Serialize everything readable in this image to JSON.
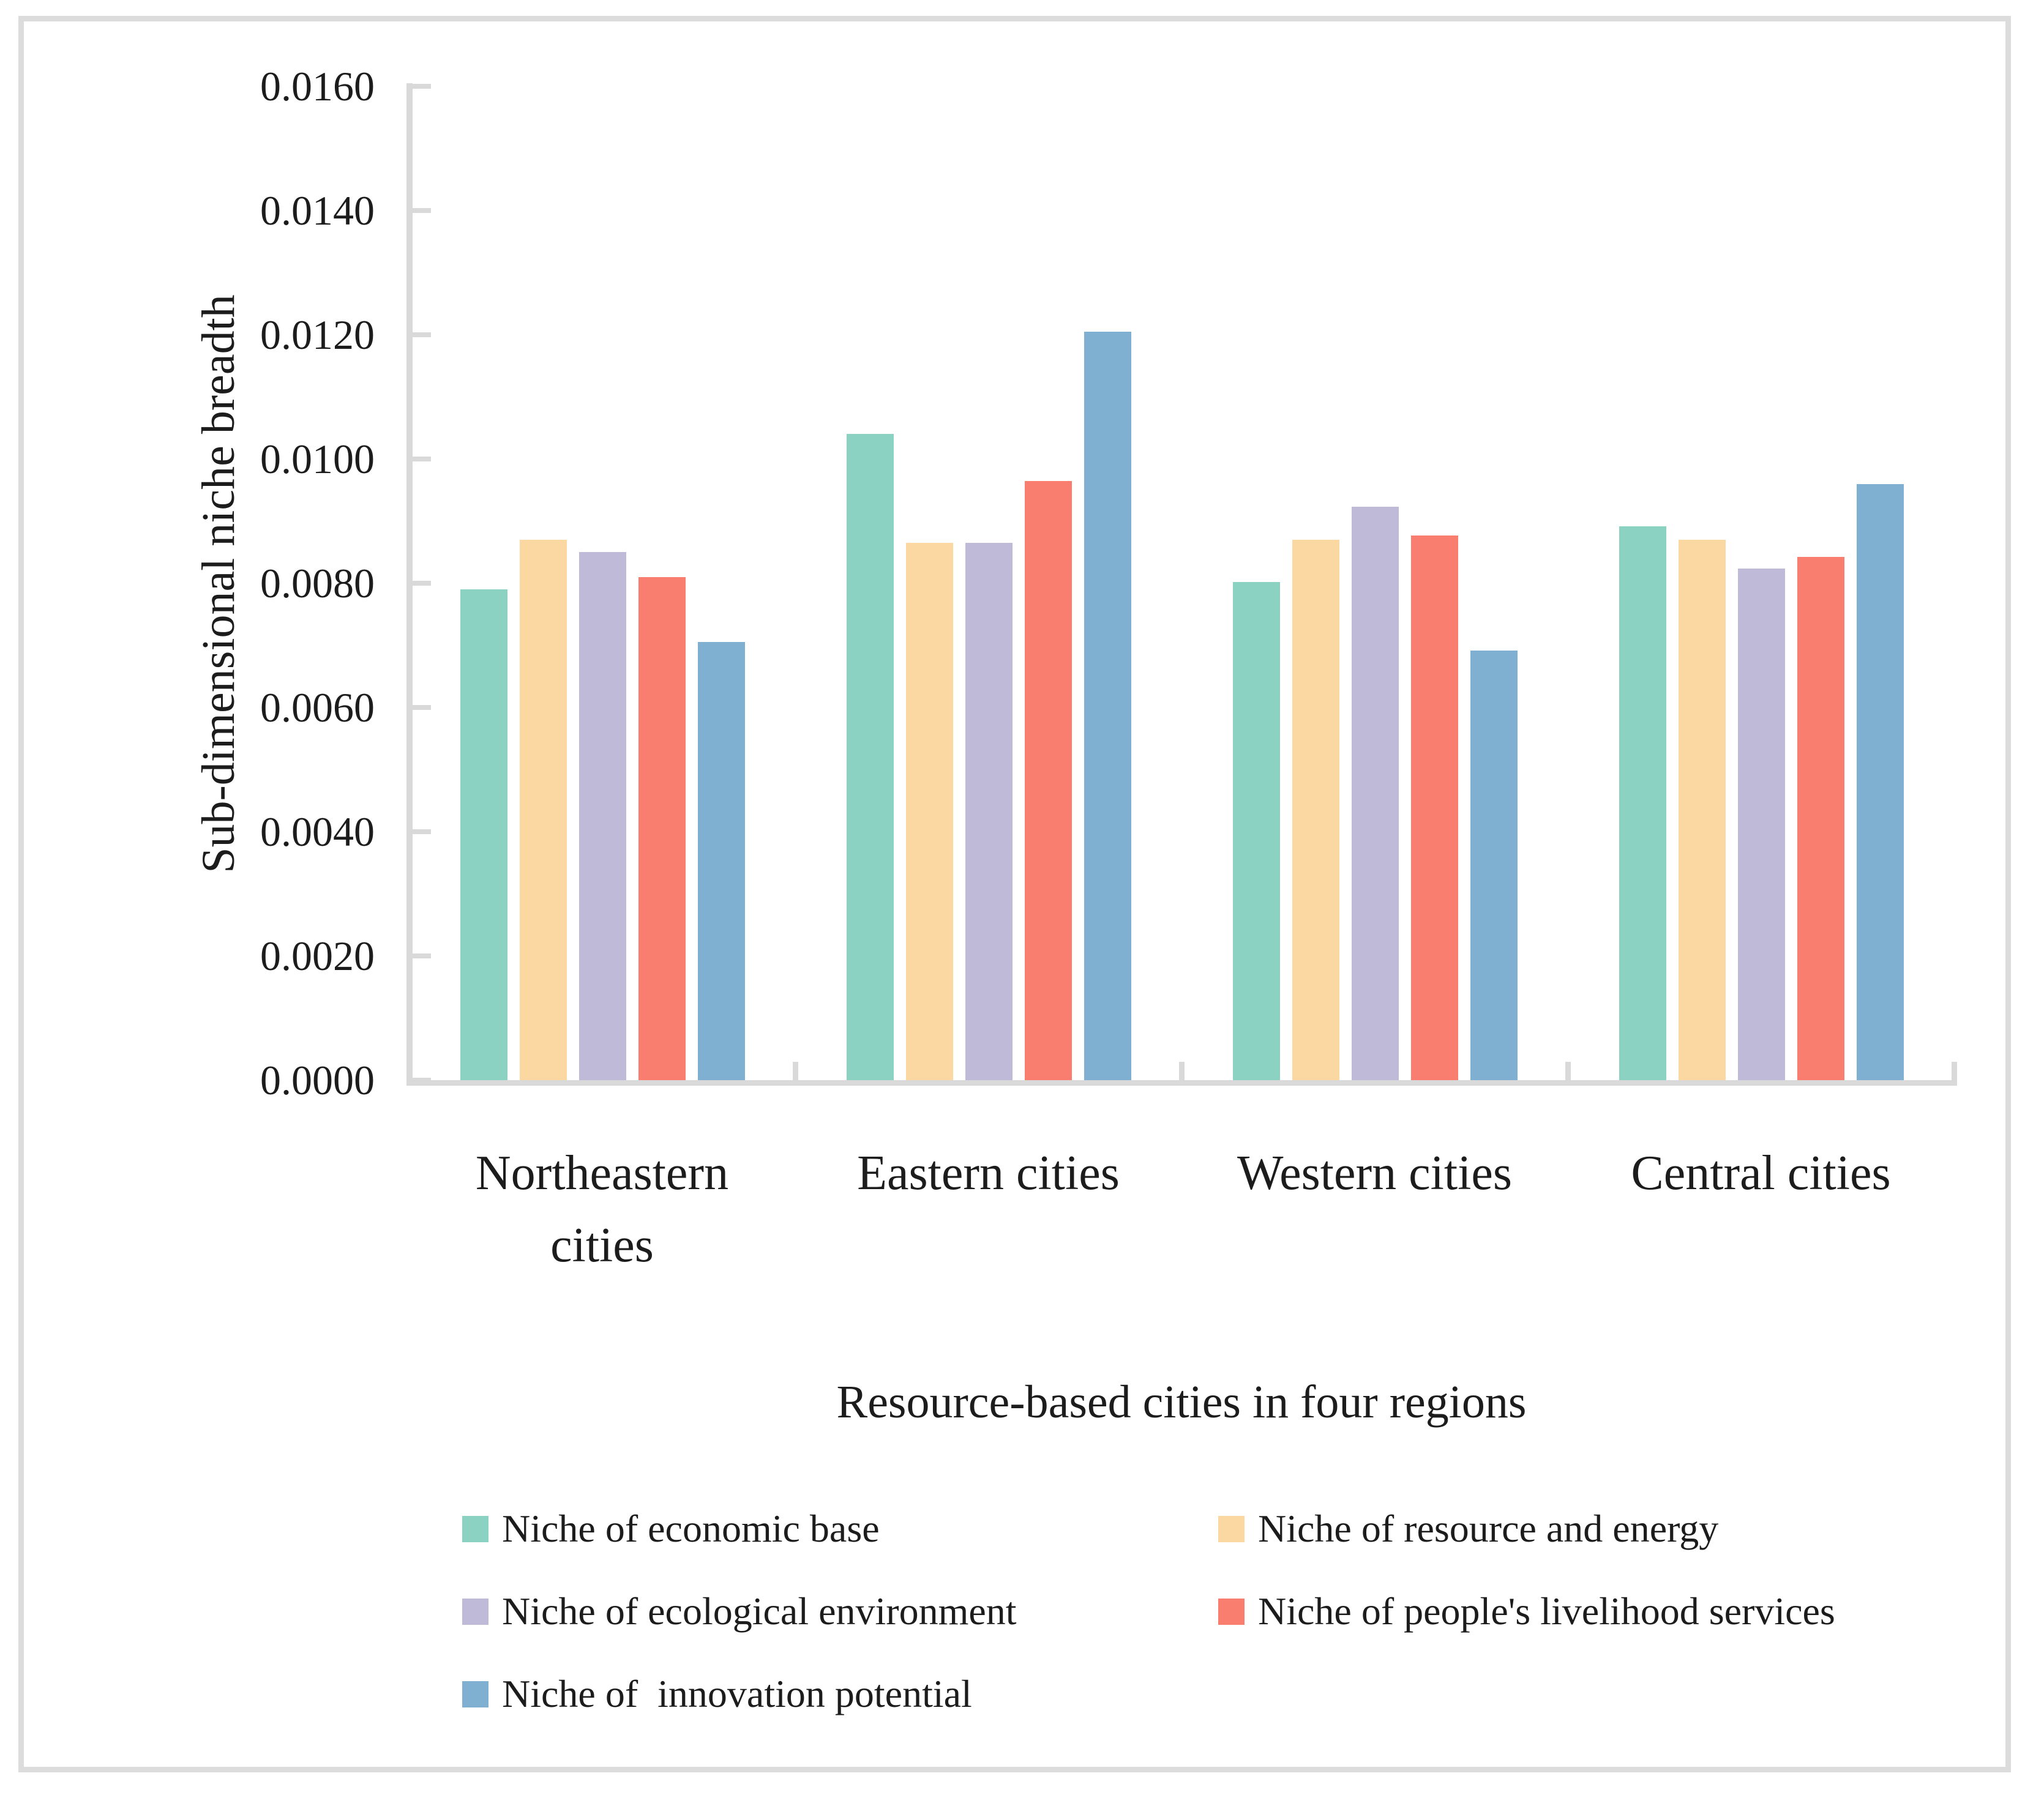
{
  "chart_data": {
    "type": "bar",
    "title": "",
    "xlabel": "Resource-based cities in four regions",
    "ylabel": "Sub-dimensional niche breadth",
    "categories": [
      "Northeastern cities",
      "Eastern cities",
      "Western cities",
      "Central cities"
    ],
    "category_label_lines": [
      "Northeastern\ncities",
      "Eastern cities",
      "Western cities",
      "Central cities"
    ],
    "series": [
      {
        "name": "Niche of economic base",
        "color": "#8bd2c3",
        "values": [
          0.0079,
          0.0104,
          0.00802,
          0.00892
        ]
      },
      {
        "name": "Niche of resource and energy",
        "color": "#fbd7a2",
        "values": [
          0.0087,
          0.00865,
          0.0087,
          0.0087
        ]
      },
      {
        "name": "Niche of ecological environment",
        "color": "#bebad8",
        "values": [
          0.0085,
          0.00865,
          0.00923,
          0.00824
        ]
      },
      {
        "name": "Niche of people's livelihood services",
        "color": "#f97e6f",
        "values": [
          0.0081,
          0.00965,
          0.00877,
          0.00842
        ]
      },
      {
        "name": "Niche of  innovation potential",
        "color": "#7fb0d2",
        "values": [
          0.00705,
          0.01205,
          0.00692,
          0.0096
        ]
      }
    ],
    "y_axis": {
      "min": 0.0,
      "max": 0.016,
      "step": 0.002,
      "tick_labels": [
        "0.0000",
        "0.0020",
        "0.0040",
        "0.0060",
        "0.0080",
        "0.0100",
        "0.0120",
        "0.0140",
        "0.0160"
      ]
    },
    "grid": false,
    "legend_position": "bottom, two columns, three rows",
    "legend_rows": [
      [
        0,
        1
      ],
      [
        2,
        3
      ],
      [
        4
      ]
    ]
  },
  "colors": {
    "axis": "#d9d9d9",
    "frame": "#dcdcdc",
    "text": "#1c1c1c"
  }
}
